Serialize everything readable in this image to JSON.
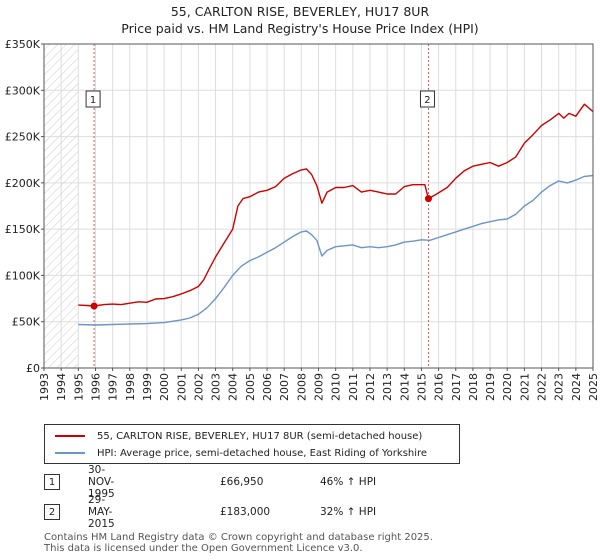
{
  "chart_data": {
    "type": "line",
    "title": "55, CARLTON RISE, BEVERLEY, HU17 8UR",
    "subtitle": "Price paid vs. HM Land Registry's House Price Index (HPI)",
    "xlim": [
      1993,
      2025
    ],
    "ylim": [
      0,
      350000
    ],
    "x_ticks": [
      "1993",
      "1994",
      "1995",
      "1996",
      "1997",
      "1998",
      "1999",
      "2000",
      "2001",
      "2002",
      "2003",
      "2004",
      "2005",
      "2006",
      "2007",
      "2008",
      "2009",
      "2010",
      "2011",
      "2012",
      "2013",
      "2014",
      "2015",
      "2016",
      "2017",
      "2018",
      "2019",
      "2020",
      "2021",
      "2022",
      "2023",
      "2024",
      "2025"
    ],
    "y_ticks": [
      {
        "value": 0,
        "label": "£0"
      },
      {
        "value": 50000,
        "label": "£50K"
      },
      {
        "value": 100000,
        "label": "£100K"
      },
      {
        "value": 150000,
        "label": "£150K"
      },
      {
        "value": 200000,
        "label": "£200K"
      },
      {
        "value": 250000,
        "label": "£250K"
      },
      {
        "value": 300000,
        "label": "£300K"
      },
      {
        "value": 350000,
        "label": "£350K"
      }
    ],
    "grid": true,
    "hatched_range_before": 1995.0,
    "series": [
      {
        "name": "55, CARLTON RISE, BEVERLEY, HU17 8UR (semi-detached house)",
        "color": "#cc0000",
        "x": [
          1995.0,
          1995.5,
          1995.92,
          1996.5,
          1997,
          1997.5,
          1998,
          1998.5,
          1999,
          1999.5,
          2000,
          2000.5,
          2001,
          2001.5,
          2002,
          2002.3,
          2002.6,
          2003,
          2003.5,
          2004,
          2004.3,
          2004.6,
          2005,
          2005.5,
          2006,
          2006.5,
          2007,
          2007.5,
          2008,
          2008.3,
          2008.6,
          2008.9,
          2009.2,
          2009.5,
          2010,
          2010.5,
          2011,
          2011.5,
          2012,
          2012.5,
          2013,
          2013.5,
          2014,
          2014.5,
          2015.2,
          2015.4,
          2015.8,
          2016.5,
          2017,
          2017.5,
          2018,
          2018.5,
          2019,
          2019.5,
          2020,
          2020.5,
          2021,
          2021.5,
          2022,
          2022.5,
          2023,
          2023.3,
          2023.6,
          2024,
          2024.5,
          2025
        ],
        "values": [
          68000,
          67500,
          66950,
          68500,
          69000,
          68500,
          70000,
          71500,
          71000,
          74500,
          75000,
          77000,
          80000,
          83500,
          88000,
          95000,
          106000,
          120000,
          135000,
          150000,
          175000,
          183000,
          185000,
          190000,
          192000,
          196000,
          205000,
          210000,
          214000,
          215000,
          209000,
          197000,
          178000,
          190000,
          195000,
          195000,
          197000,
          190000,
          192000,
          190000,
          188000,
          188000,
          196000,
          198000,
          198000,
          183000,
          187000,
          195000,
          205000,
          213000,
          218000,
          220000,
          222000,
          218000,
          222000,
          228000,
          243000,
          252000,
          262000,
          268000,
          275000,
          270000,
          275000,
          272000,
          285000,
          277000
        ]
      },
      {
        "name": "HPI: Average price, semi-detached house, East Riding of Yorkshire",
        "color": "#6a95c8",
        "x": [
          1995.0,
          1996,
          1997,
          1998,
          1999,
          2000,
          2001,
          2001.5,
          2002,
          2002.5,
          2003,
          2003.5,
          2004,
          2004.5,
          2005,
          2005.5,
          2006,
          2006.5,
          2007,
          2007.5,
          2008,
          2008.3,
          2008.6,
          2008.9,
          2009.2,
          2009.5,
          2010,
          2010.5,
          2011,
          2011.5,
          2012,
          2012.5,
          2013,
          2013.5,
          2014,
          2014.5,
          2015,
          2015.5,
          2016,
          2016.5,
          2017,
          2017.5,
          2018,
          2018.5,
          2019,
          2019.5,
          2020,
          2020.5,
          2021,
          2021.5,
          2022,
          2022.5,
          2023,
          2023.5,
          2024,
          2024.5,
          2025
        ],
        "values": [
          47000,
          46500,
          47000,
          47500,
          48000,
          49000,
          52000,
          54000,
          58000,
          65000,
          75000,
          87000,
          100000,
          110000,
          116000,
          120000,
          125000,
          130000,
          136000,
          142000,
          147000,
          148000,
          144000,
          138000,
          121000,
          127000,
          131000,
          132000,
          133000,
          130000,
          131000,
          130000,
          131000,
          133000,
          136000,
          137000,
          138500,
          138000,
          141000,
          144000,
          147000,
          150000,
          153000,
          156000,
          158000,
          160000,
          161000,
          166000,
          175000,
          181000,
          190000,
          197000,
          202000,
          200000,
          203000,
          207000,
          208000
        ]
      }
    ],
    "sales": [
      {
        "n": "1",
        "date": "30-NOV-1995",
        "x": 1995.92,
        "price": 66950,
        "price_label": "£66,950",
        "hpi": "46% ↑ HPI"
      },
      {
        "n": "2",
        "date": "29-MAY-2015",
        "x": 2015.41,
        "price": 183000,
        "price_label": "£183,000",
        "hpi": "32% ↑ HPI"
      }
    ]
  },
  "footer": {
    "line1": "Contains HM Land Registry data © Crown copyright and database right 2025.",
    "line2": "This data is licensed under the Open Government Licence v3.0."
  }
}
